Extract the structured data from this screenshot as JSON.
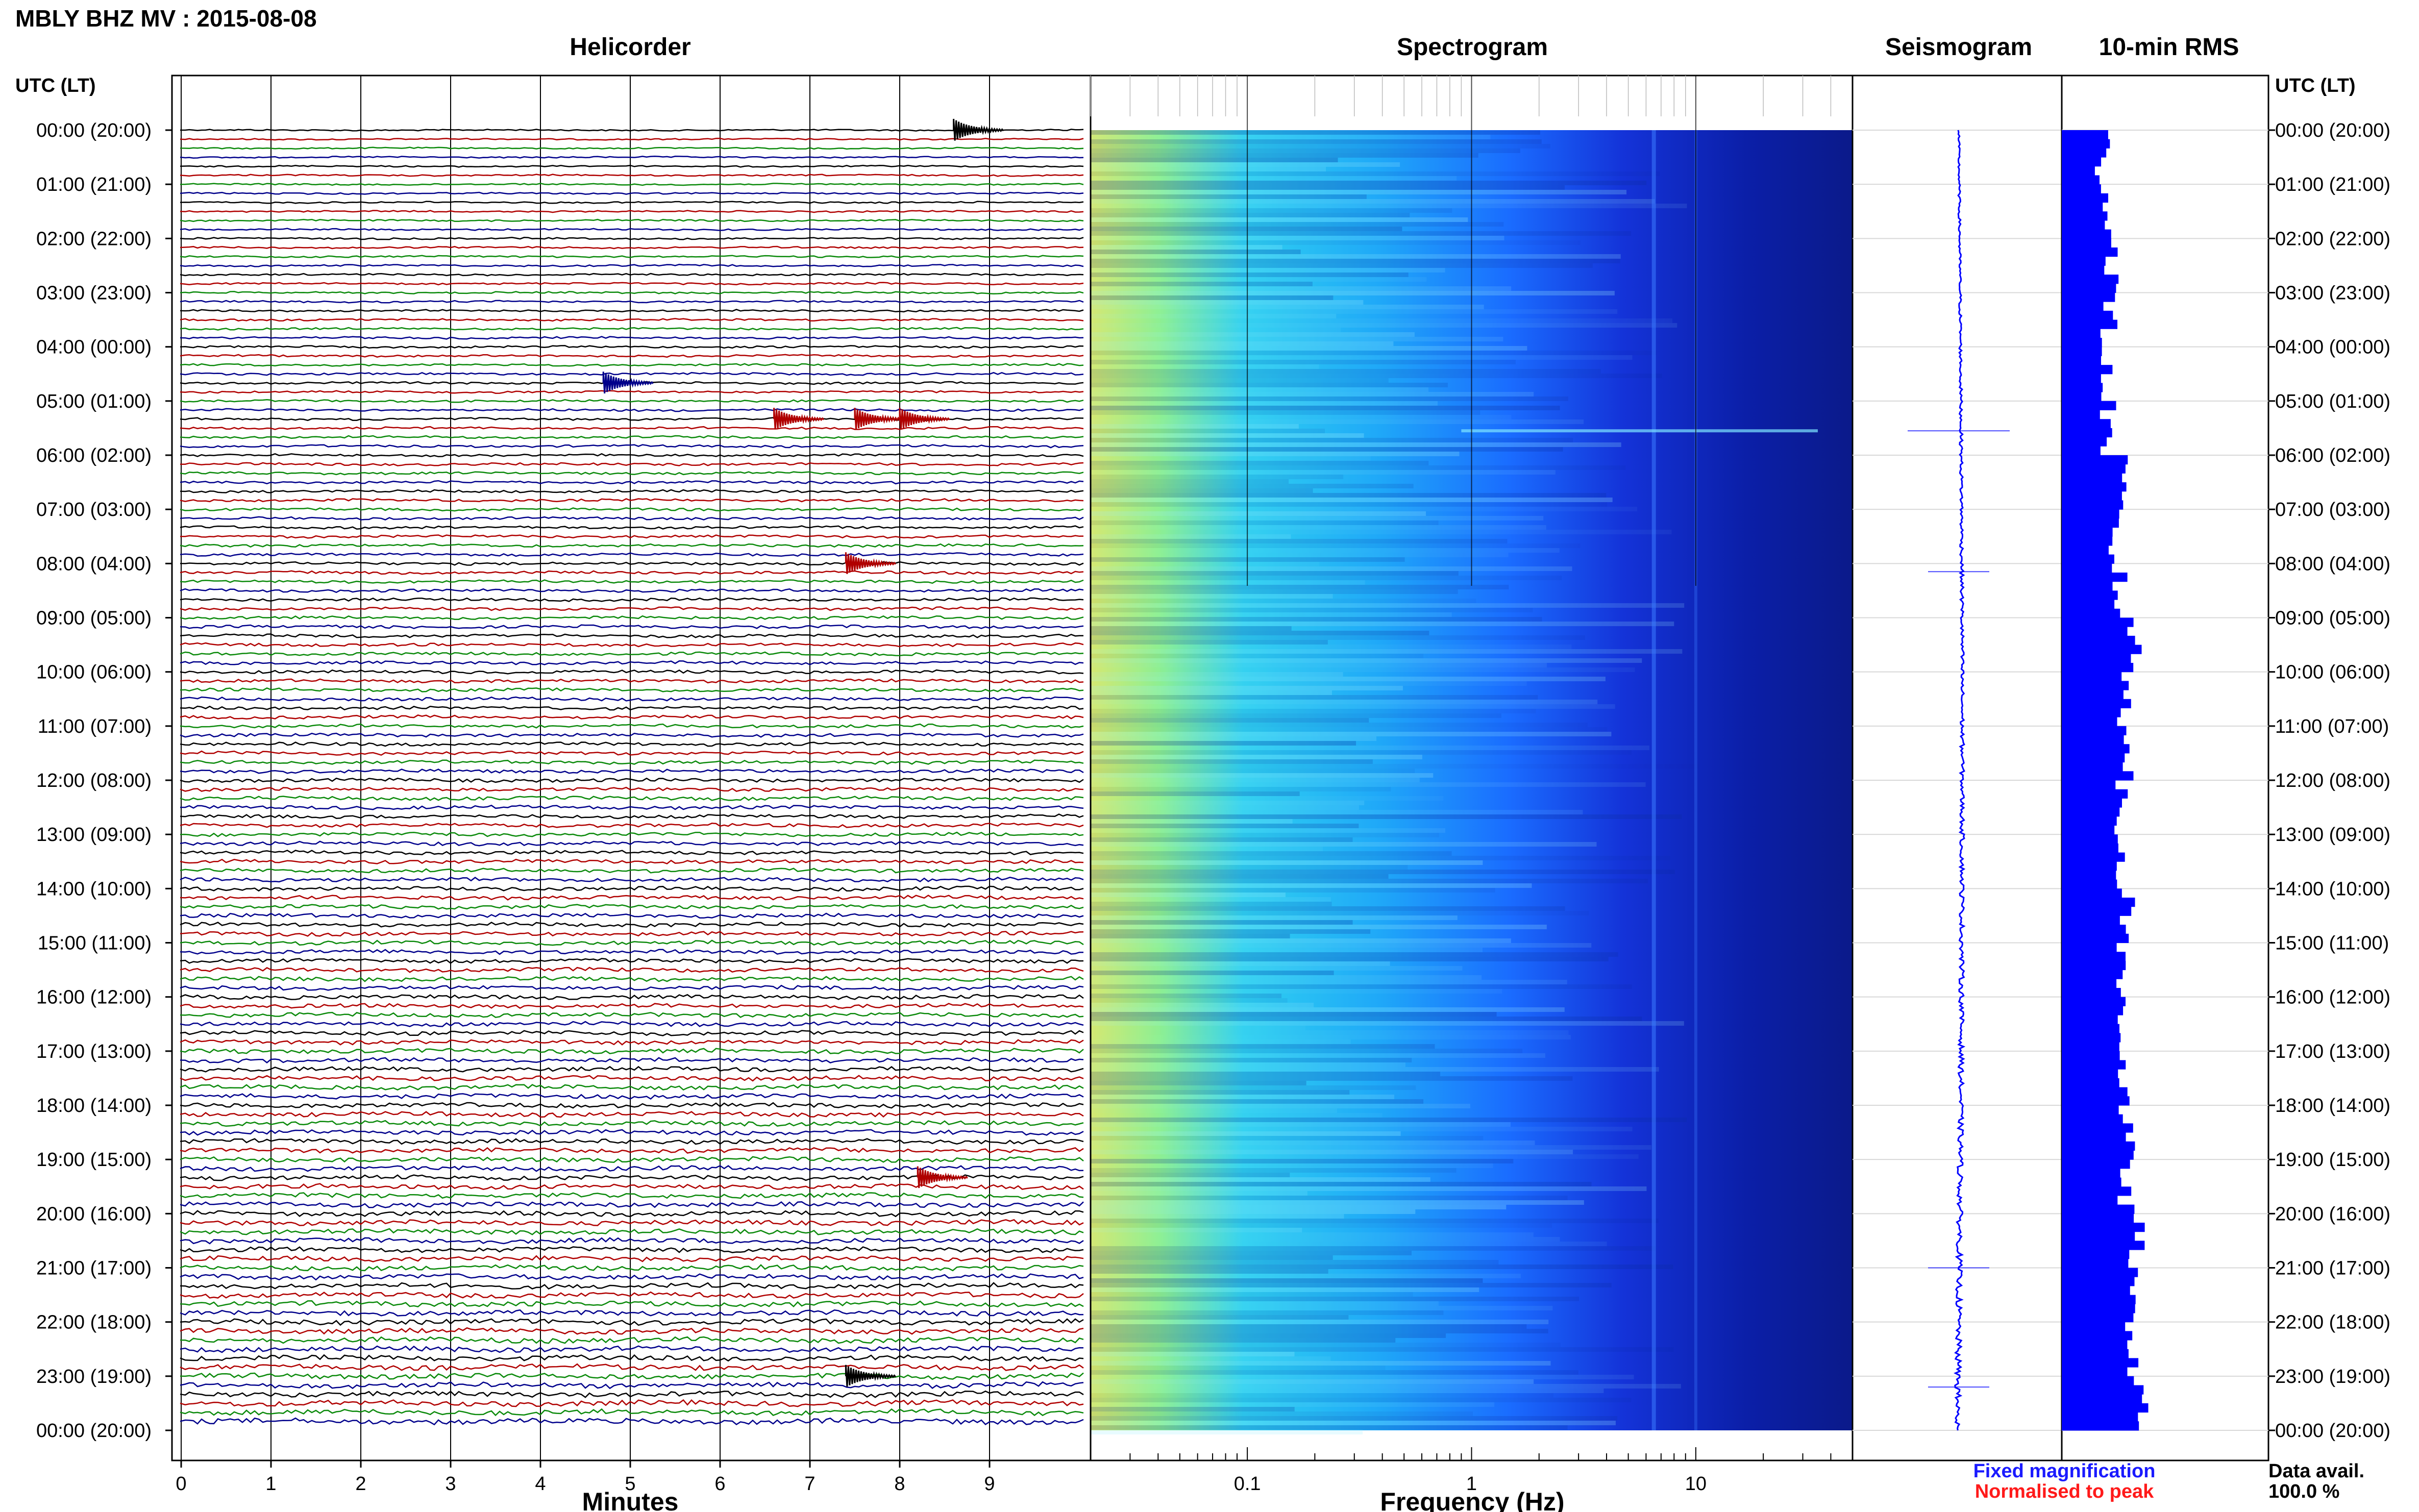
{
  "header": {
    "title": "MBLY BHZ MV : 2015-08-08"
  },
  "panels": {
    "helicorder": "Helicorder",
    "spectrogram": "Spectrogram",
    "seismogram": "Seismogram",
    "rms": "10-min RMS"
  },
  "axes": {
    "time_header_left": "UTC (LT)",
    "time_header_right": "UTC (LT)",
    "helicorder_xlabel": "Minutes",
    "spectrogram_xlabel": "Frequency (Hz)"
  },
  "legend": {
    "fixed": "Fixed magnification",
    "normalised": "Normalised to peak",
    "fixed_color": "#1a1aff",
    "normalised_color": "#ff1a1a"
  },
  "availability": {
    "label": "Data avail.",
    "value": "100.0 %"
  },
  "colors": {
    "trace_cycle": [
      "#000000",
      "#b00000",
      "#0b8a0b",
      "#00008b"
    ],
    "seismogram": "#0000ff",
    "rms": "#0000ff"
  },
  "chart_data": [
    {
      "type": "line",
      "panel": "Helicorder",
      "xlabel": "Minutes",
      "xticks": [
        "0",
        "1",
        "2",
        "3",
        "4",
        "5",
        "6",
        "7",
        "8",
        "9"
      ],
      "xlim": [
        0,
        10
      ],
      "lines_per_hour": 6,
      "ytick_labels": [
        "00:00 (20:00)",
        "01:00 (21:00)",
        "02:00 (22:00)",
        "03:00 (23:00)",
        "04:00 (00:00)",
        "05:00 (01:00)",
        "06:00 (02:00)",
        "07:00 (03:00)",
        "08:00 (04:00)",
        "09:00 (05:00)",
        "10:00 (06:00)",
        "11:00 (07:00)",
        "12:00 (08:00)",
        "13:00 (09:00)",
        "14:00 (10:00)",
        "15:00 (11:00)",
        "16:00 (12:00)",
        "17:00 (13:00)",
        "18:00 (14:00)",
        "19:00 (15:00)",
        "20:00 (16:00)",
        "21:00 (17:00)",
        "22:00 (18:00)",
        "23:00 (19:00)",
        "00:00 (20:00)"
      ],
      "events": [
        {
          "line": 0,
          "minute": 8.6,
          "color": "#000000"
        },
        {
          "line": 28,
          "minute": 4.7,
          "color": "#00008b"
        },
        {
          "line": 32,
          "minute": 6.6,
          "color": "#b00000"
        },
        {
          "line": 32,
          "minute": 7.5,
          "color": "#b00000"
        },
        {
          "line": 32,
          "minute": 8.0,
          "color": "#b00000"
        },
        {
          "line": 48,
          "minute": 7.4,
          "color": "#b00000"
        },
        {
          "line": 116,
          "minute": 8.2,
          "color": "#b00000"
        },
        {
          "line": 138,
          "minute": 7.4,
          "color": "#000000"
        }
      ]
    },
    {
      "type": "heatmap",
      "panel": "Spectrogram",
      "xlabel": "Frequency (Hz)",
      "xscale": "log",
      "xlim": [
        0.02,
        50
      ],
      "xticks": [
        "0.1",
        "1",
        "10"
      ],
      "colormap": [
        "#d8e86a",
        "#78f09a",
        "#2fd0f0",
        "#1a7cff",
        "#1433d8",
        "#0b1a8a"
      ]
    },
    {
      "type": "line",
      "panel": "Seismogram",
      "color": "#0000ff",
      "spikes_hour": [
        5.55,
        8.15,
        21.0,
        23.2
      ]
    },
    {
      "type": "bar",
      "panel": "10-min RMS",
      "color": "#0000ff",
      "values_hourly": [
        0.4,
        0.45,
        0.5,
        0.45,
        0.42,
        0.45,
        0.55,
        0.5,
        0.55,
        0.7,
        0.62,
        0.66,
        0.55,
        0.58,
        0.64,
        0.56,
        0.6,
        0.6,
        0.62,
        0.62,
        0.72,
        0.65,
        0.7,
        0.75
      ]
    }
  ]
}
